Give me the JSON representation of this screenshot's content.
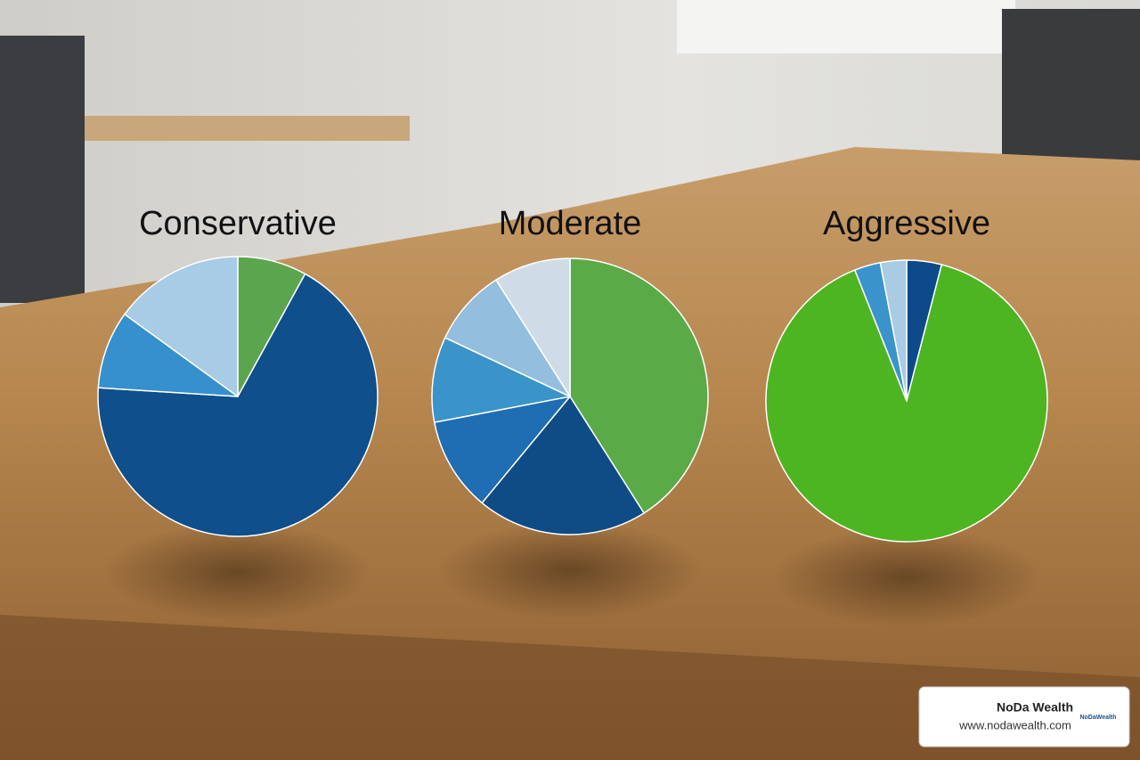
{
  "chart_data": [
    {
      "type": "pie",
      "title": "Conservative",
      "values": [
        8,
        68,
        9,
        15
      ],
      "colors": [
        "#5ca54f",
        "#0e4f8c",
        "#3590cd",
        "#a8cbe6"
      ]
    },
    {
      "type": "pie",
      "title": "Moderate",
      "values": [
        41,
        20,
        11,
        10,
        9,
        9
      ],
      "colors": [
        "#5aaa48",
        "#0f4c86",
        "#1f6db2",
        "#3a94c9",
        "#93bedd",
        "#cfdce7"
      ]
    },
    {
      "type": "pie",
      "title": "Aggressive",
      "values": [
        4,
        90,
        3,
        3
      ],
      "colors": [
        "#0e4a8a",
        "#4db521",
        "#3a94cb",
        "#a9cbe3"
      ]
    }
  ],
  "watermark": {
    "name": "NoDa Wealth",
    "url": "www.nodawealth.com",
    "logo": "NoDaWealth"
  }
}
